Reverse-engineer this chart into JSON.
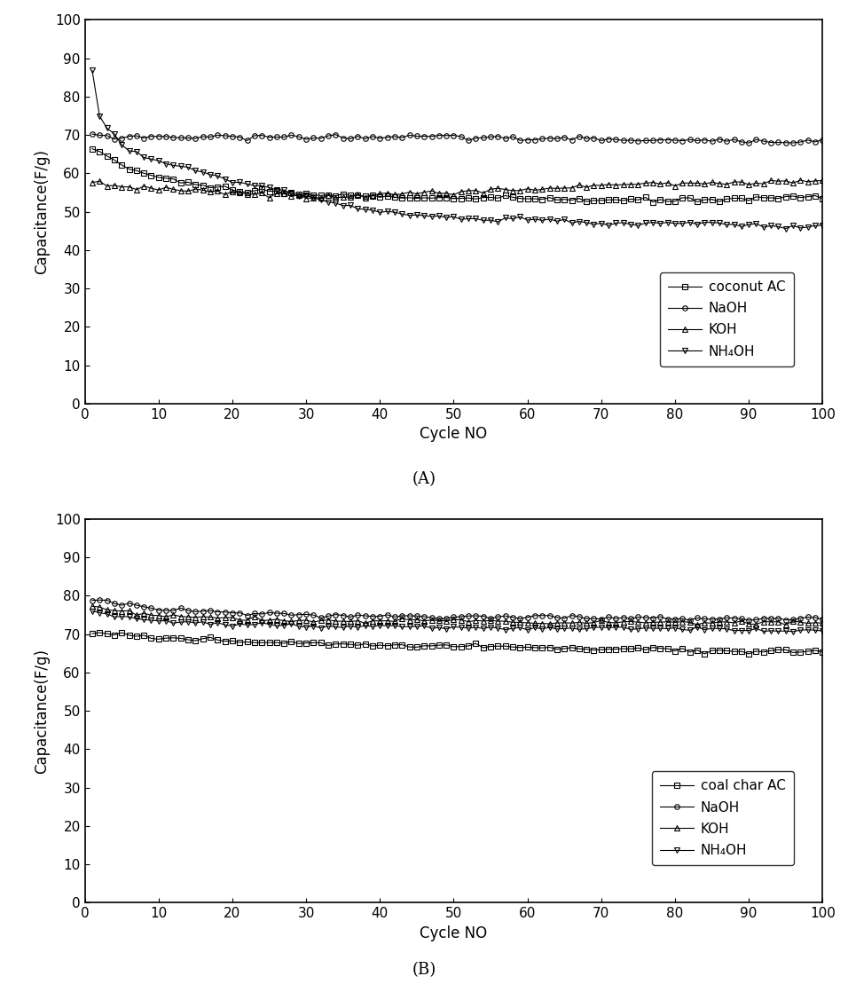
{
  "panel_A": {
    "title_label": "(A)",
    "ylabel": "Capacitance(F/g)",
    "xlabel": "Cycle NO",
    "ylim": [
      0,
      100
    ],
    "xlim": [
      0,
      100
    ],
    "yticks": [
      0,
      10,
      20,
      30,
      40,
      50,
      60,
      70,
      80,
      90,
      100
    ],
    "xticks": [
      0,
      10,
      20,
      30,
      40,
      50,
      60,
      70,
      80,
      90,
      100
    ],
    "coconut_AC": {
      "label": "coconut AC",
      "marker": "s",
      "y_pts": [
        [
          1,
          66
        ],
        [
          3,
          65
        ],
        [
          5,
          62
        ],
        [
          8,
          60
        ],
        [
          10,
          59
        ],
        [
          15,
          57
        ],
        [
          20,
          56
        ],
        [
          25,
          55
        ],
        [
          30,
          54.5
        ],
        [
          40,
          54
        ],
        [
          50,
          53.5
        ],
        [
          60,
          53.5
        ],
        [
          70,
          53
        ],
        [
          80,
          53
        ],
        [
          90,
          53.5
        ],
        [
          100,
          54
        ]
      ]
    },
    "NaOH": {
      "label": "NaOH",
      "marker": "o",
      "y_pts": [
        [
          1,
          70
        ],
        [
          5,
          69.5
        ],
        [
          10,
          69.5
        ],
        [
          20,
          69.5
        ],
        [
          30,
          69.5
        ],
        [
          40,
          69.5
        ],
        [
          50,
          69.5
        ],
        [
          60,
          69
        ],
        [
          70,
          69
        ],
        [
          80,
          68.5
        ],
        [
          90,
          68.5
        ],
        [
          100,
          68.5
        ]
      ]
    },
    "KOH": {
      "label": "KOH",
      "marker": "^",
      "y_pts": [
        [
          1,
          58
        ],
        [
          3,
          57
        ],
        [
          5,
          56.5
        ],
        [
          10,
          56
        ],
        [
          15,
          55.5
        ],
        [
          20,
          55
        ],
        [
          25,
          54.5
        ],
        [
          30,
          54
        ],
        [
          35,
          54
        ],
        [
          40,
          54.5
        ],
        [
          50,
          55
        ],
        [
          60,
          56
        ],
        [
          70,
          57
        ],
        [
          80,
          57.5
        ],
        [
          90,
          57.5
        ],
        [
          100,
          58
        ]
      ]
    },
    "NH4OH": {
      "label": "NH₄OH",
      "marker": "v",
      "y_pts": [
        [
          1,
          87
        ],
        [
          2,
          75
        ],
        [
          3,
          72
        ],
        [
          4,
          70
        ],
        [
          5,
          68
        ],
        [
          6,
          66
        ],
        [
          7,
          65
        ],
        [
          8,
          64
        ],
        [
          10,
          63
        ],
        [
          12,
          62
        ],
        [
          15,
          61
        ],
        [
          20,
          58
        ],
        [
          25,
          56
        ],
        [
          30,
          54
        ],
        [
          35,
          52
        ],
        [
          40,
          50
        ],
        [
          45,
          49
        ],
        [
          50,
          48.5
        ],
        [
          55,
          48
        ],
        [
          60,
          48
        ],
        [
          65,
          47.5
        ],
        [
          70,
          47
        ],
        [
          75,
          47
        ],
        [
          80,
          47
        ],
        [
          85,
          47
        ],
        [
          90,
          46.5
        ],
        [
          95,
          46.5
        ],
        [
          100,
          46
        ]
      ]
    }
  },
  "panel_B": {
    "title_label": "(B)",
    "ylabel": "Capacitance(F/g)",
    "xlabel": "Cycle NO",
    "ylim": [
      0,
      100
    ],
    "xlim": [
      0,
      100
    ],
    "yticks": [
      0,
      10,
      20,
      30,
      40,
      50,
      60,
      70,
      80,
      90,
      100
    ],
    "xticks": [
      0,
      10,
      20,
      30,
      40,
      50,
      60,
      70,
      80,
      90,
      100
    ],
    "coal_char_AC": {
      "label": "coal char AC",
      "marker": "s",
      "y_pts": [
        [
          1,
          70.5
        ],
        [
          5,
          70
        ],
        [
          10,
          69
        ],
        [
          20,
          68
        ],
        [
          30,
          67.5
        ],
        [
          40,
          67
        ],
        [
          50,
          67
        ],
        [
          60,
          66.5
        ],
        [
          70,
          66
        ],
        [
          80,
          66
        ],
        [
          90,
          65.5
        ],
        [
          100,
          65.5
        ]
      ]
    },
    "NaOH": {
      "label": "NaOH",
      "marker": "o",
      "y_pts": [
        [
          1,
          79
        ],
        [
          2,
          79
        ],
        [
          3,
          78.5
        ],
        [
          5,
          78
        ],
        [
          8,
          77
        ],
        [
          10,
          76.5
        ],
        [
          15,
          76
        ],
        [
          20,
          75.5
        ],
        [
          30,
          75
        ],
        [
          40,
          74.5
        ],
        [
          50,
          74.5
        ],
        [
          60,
          74.5
        ],
        [
          70,
          74
        ],
        [
          80,
          74
        ],
        [
          90,
          74
        ],
        [
          100,
          74
        ]
      ]
    },
    "KOH": {
      "label": "KOH",
      "marker": "^",
      "y_pts": [
        [
          1,
          77
        ],
        [
          2,
          77
        ],
        [
          3,
          76.5
        ],
        [
          5,
          76
        ],
        [
          8,
          75.5
        ],
        [
          10,
          75
        ],
        [
          15,
          74.5
        ],
        [
          20,
          74
        ],
        [
          30,
          73.5
        ],
        [
          40,
          73.5
        ],
        [
          50,
          73.5
        ],
        [
          60,
          73
        ],
        [
          70,
          73
        ],
        [
          80,
          73
        ],
        [
          90,
          73
        ],
        [
          100,
          73
        ]
      ]
    },
    "NH4OH": {
      "label": "NH₄OH",
      "marker": "v",
      "y_pts": [
        [
          1,
          75.5
        ],
        [
          2,
          75.5
        ],
        [
          3,
          75
        ],
        [
          5,
          74.5
        ],
        [
          8,
          74
        ],
        [
          10,
          73.5
        ],
        [
          15,
          73
        ],
        [
          20,
          72.5
        ],
        [
          30,
          72
        ],
        [
          40,
          72
        ],
        [
          50,
          71.5
        ],
        [
          60,
          71.5
        ],
        [
          70,
          71.5
        ],
        [
          80,
          71.5
        ],
        [
          90,
          71
        ],
        [
          100,
          71
        ]
      ]
    }
  },
  "line_color": "#000000",
  "marker_size": 4,
  "linewidth": 0.8,
  "legend_fontsize": 11,
  "axis_fontsize": 12,
  "tick_fontsize": 11
}
